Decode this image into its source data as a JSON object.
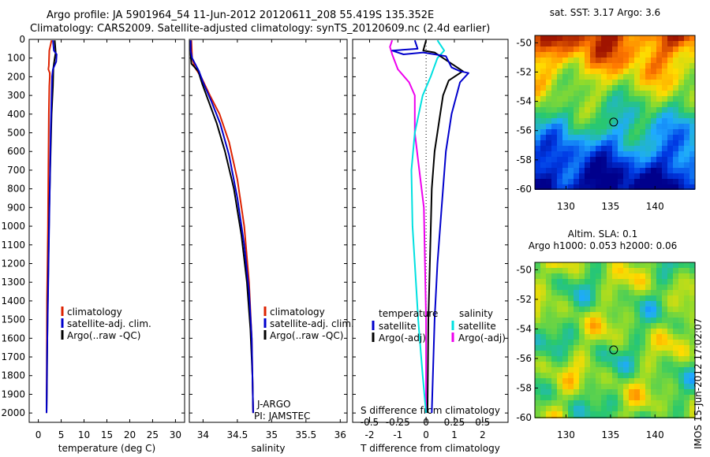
{
  "header": {
    "title_line1": "Argo profile: JA 5901964_54 11-Jun-2012 20120611_208 55.419S 135.352E",
    "title_line2": "Climatology: CARS2009. Satellite-adjusted climatology: synTS_20120609.nc (2.4d earlier)"
  },
  "depth_ticks": [
    "0",
    "100",
    "200",
    "300",
    "400",
    "500",
    "600",
    "700",
    "800",
    "900",
    "1000",
    "1100",
    "1200",
    "1300",
    "1400",
    "1500",
    "1600",
    "1700",
    "1800",
    "1900",
    "2000"
  ],
  "colors": {
    "climatology": "#dd2200",
    "satellite": "#0000cc",
    "argo": "#000000",
    "satellite_s": "#00e0e0",
    "argo_s": "#ee00ee"
  },
  "chart_data": [
    {
      "type": "line",
      "xlabel": "temperature (deg C)",
      "x_ticks": [
        "0",
        "5",
        "10",
        "15",
        "20",
        "25",
        "30"
      ],
      "xlim": [
        -2,
        32
      ],
      "ylim": [
        2050,
        0
      ],
      "legend": [
        "climatology",
        "satellite-adj. clim.",
        "Argo(..raw -QC)"
      ],
      "series": [
        {
          "name": "climatology",
          "points": [
            [
              2.9,
              5
            ],
            [
              2.4,
              60
            ],
            [
              2.3,
              140
            ],
            [
              2.2,
              160
            ],
            [
              2.5,
              180
            ],
            [
              2.5,
              200
            ],
            [
              2.4,
              250
            ],
            [
              2.3,
              400
            ],
            [
              2.2,
              700
            ],
            [
              2.1,
              1000
            ],
            [
              1.9,
              1400
            ],
            [
              1.8,
              2000
            ]
          ]
        },
        {
          "name": "satellite-adj. clim.",
          "points": [
            [
              3.2,
              5
            ],
            [
              3.4,
              60
            ],
            [
              4.0,
              80
            ],
            [
              3.9,
              120
            ],
            [
              3.2,
              160
            ],
            [
              3.0,
              200
            ],
            [
              2.9,
              300
            ],
            [
              2.7,
              500
            ],
            [
              2.5,
              800
            ],
            [
              2.3,
              1100
            ],
            [
              2.1,
              1400
            ],
            [
              1.9,
              1700
            ],
            [
              1.8,
              2000
            ]
          ]
        },
        {
          "name": "Argo(..raw -QC)",
          "points": [
            [
              3.6,
              5
            ],
            [
              3.8,
              70
            ],
            [
              3.6,
              100
            ],
            [
              3.3,
              150
            ],
            [
              3.2,
              250
            ],
            [
              2.9,
              400
            ],
            [
              2.7,
              600
            ],
            [
              2.4,
              900
            ],
            [
              2.2,
              1200
            ],
            [
              2.0,
              1500
            ],
            [
              1.9,
              1800
            ],
            [
              1.8,
              2000
            ]
          ]
        }
      ]
    },
    {
      "type": "line",
      "xlabel": "salinity",
      "x_ticks": [
        "34",
        "34.5",
        "35",
        "35.5",
        "36"
      ],
      "xlim": [
        33.8,
        36.1
      ],
      "ylim": [
        2050,
        0
      ],
      "legend": [
        "climatology",
        "satellite-adj. clim.",
        "Argo(..raw -QC)"
      ],
      "annotations": [
        "J-ARGO",
        "PI: JAMSTEC"
      ],
      "series": [
        {
          "name": "climatology",
          "points": [
            [
              33.83,
              5
            ],
            [
              33.84,
              100
            ],
            [
              33.88,
              150
            ],
            [
              33.97,
              200
            ],
            [
              34.1,
              300
            ],
            [
              34.24,
              400
            ],
            [
              34.38,
              550
            ],
            [
              34.5,
              750
            ],
            [
              34.6,
              1000
            ],
            [
              34.67,
              1300
            ],
            [
              34.71,
              1600
            ],
            [
              34.73,
              2000
            ]
          ]
        },
        {
          "name": "satellite-adj. clim.",
          "points": [
            [
              33.82,
              5
            ],
            [
              33.82,
              60
            ],
            [
              33.84,
              100
            ],
            [
              33.94,
              170
            ],
            [
              34.0,
              230
            ],
            [
              34.12,
              330
            ],
            [
              34.25,
              450
            ],
            [
              34.38,
              620
            ],
            [
              34.5,
              850
            ],
            [
              34.6,
              1100
            ],
            [
              34.67,
              1350
            ],
            [
              34.71,
              1600
            ],
            [
              34.73,
              2000
            ]
          ]
        },
        {
          "name": "Argo(..raw -QC)",
          "points": [
            [
              33.82,
              5
            ],
            [
              33.82,
              80
            ],
            [
              33.83,
              130
            ],
            [
              33.93,
              170
            ],
            [
              33.99,
              240
            ],
            [
              34.08,
              330
            ],
            [
              34.2,
              450
            ],
            [
              34.32,
              600
            ],
            [
              34.45,
              800
            ],
            [
              34.56,
              1050
            ],
            [
              34.64,
              1300
            ],
            [
              34.69,
              1550
            ],
            [
              34.72,
              1800
            ],
            [
              34.73,
              2000
            ]
          ]
        }
      ]
    },
    {
      "type": "line",
      "xlabel": "T difference from climatology",
      "x2label": "S difference from climatology",
      "x_ticks": [
        "-2",
        "-1",
        "0",
        "1",
        "2"
      ],
      "x2_ticks": [
        "-0.5",
        "-0.25",
        "0",
        "0.25",
        "0.5"
      ],
      "xlim": [
        -2.6,
        2.9
      ],
      "ylim": [
        2050,
        0
      ],
      "legend_headers": [
        "temperature",
        "salinity"
      ],
      "legend": [
        "satellite",
        "Argo(-adj)",
        "satellite",
        "Argo(-adj)"
      ],
      "series": [
        {
          "name": "satellite",
          "axis": "T",
          "points": [
            [
              -0.4,
              5
            ],
            [
              -0.3,
              50
            ],
            [
              -1.2,
              60
            ],
            [
              -0.8,
              80
            ],
            [
              -0.1,
              70
            ],
            [
              0.7,
              90
            ],
            [
              0.9,
              150
            ],
            [
              1.2,
              170
            ],
            [
              1.5,
              180
            ],
            [
              1.2,
              230
            ],
            [
              0.9,
              400
            ],
            [
              0.7,
              600
            ],
            [
              0.55,
              900
            ],
            [
              0.4,
              1200
            ],
            [
              0.3,
              1500
            ],
            [
              0.2,
              2000
            ]
          ]
        },
        {
          "name": "Argo(-adj)",
          "axis": "T",
          "points": [
            [
              0.0,
              5
            ],
            [
              -0.1,
              60
            ],
            [
              0.3,
              70
            ],
            [
              0.8,
              120
            ],
            [
              1.3,
              170
            ],
            [
              0.8,
              220
            ],
            [
              0.6,
              300
            ],
            [
              0.5,
              400
            ],
            [
              0.3,
              600
            ],
            [
              0.2,
              800
            ],
            [
              0.15,
              1100
            ],
            [
              0.08,
              1500
            ],
            [
              0.05,
              2000
            ]
          ]
        },
        {
          "name": "satellite",
          "axis": "S",
          "points": [
            [
              0.1,
              5
            ],
            [
              0.16,
              60
            ],
            [
              0.1,
              100
            ],
            [
              0.04,
              200
            ],
            [
              -0.03,
              300
            ],
            [
              -0.1,
              500
            ],
            [
              -0.13,
              700
            ],
            [
              -0.12,
              1000
            ],
            [
              -0.1,
              1200
            ],
            [
              -0.07,
              1500
            ],
            [
              -0.03,
              1800
            ],
            [
              0.0,
              2000
            ]
          ]
        },
        {
          "name": "Argo(-adj)",
          "axis": "S",
          "points": [
            [
              -0.3,
              5
            ],
            [
              -0.32,
              40
            ],
            [
              -0.3,
              80
            ],
            [
              -0.25,
              160
            ],
            [
              -0.15,
              230
            ],
            [
              -0.1,
              300
            ],
            [
              -0.1,
              500
            ],
            [
              -0.06,
              700
            ],
            [
              -0.02,
              900
            ],
            [
              -0.01,
              1200
            ],
            [
              0.0,
              1500
            ],
            [
              0.0,
              2000
            ]
          ]
        }
      ]
    },
    {
      "type": "heatmap",
      "title": "sat. SST: 3.17 Argo: 3.6",
      "x_ticks": [
        "130",
        "135",
        "140"
      ],
      "y_ticks": [
        "-50",
        "-52",
        "-54",
        "-56",
        "-58",
        "-60"
      ],
      "xlim": [
        126.5,
        144.5
      ],
      "ylim": [
        -60,
        -49.5
      ],
      "marker": [
        135.352,
        -55.419
      ]
    },
    {
      "type": "heatmap",
      "title_line1": "Altim. SLA: 0.1",
      "title_line2": "Argo h1000: 0.053 h2000: 0.06",
      "x_ticks": [
        "130",
        "135",
        "140"
      ],
      "y_ticks": [
        "-50",
        "-52",
        "-54",
        "-56",
        "-58",
        "-60"
      ],
      "xlim": [
        126.5,
        144.5
      ],
      "ylim": [
        -60,
        -49.5
      ],
      "marker": [
        135.352,
        -55.419
      ]
    }
  ],
  "footer": {
    "stamp": "IMOS 15-Jun-2012 17:02:07"
  }
}
